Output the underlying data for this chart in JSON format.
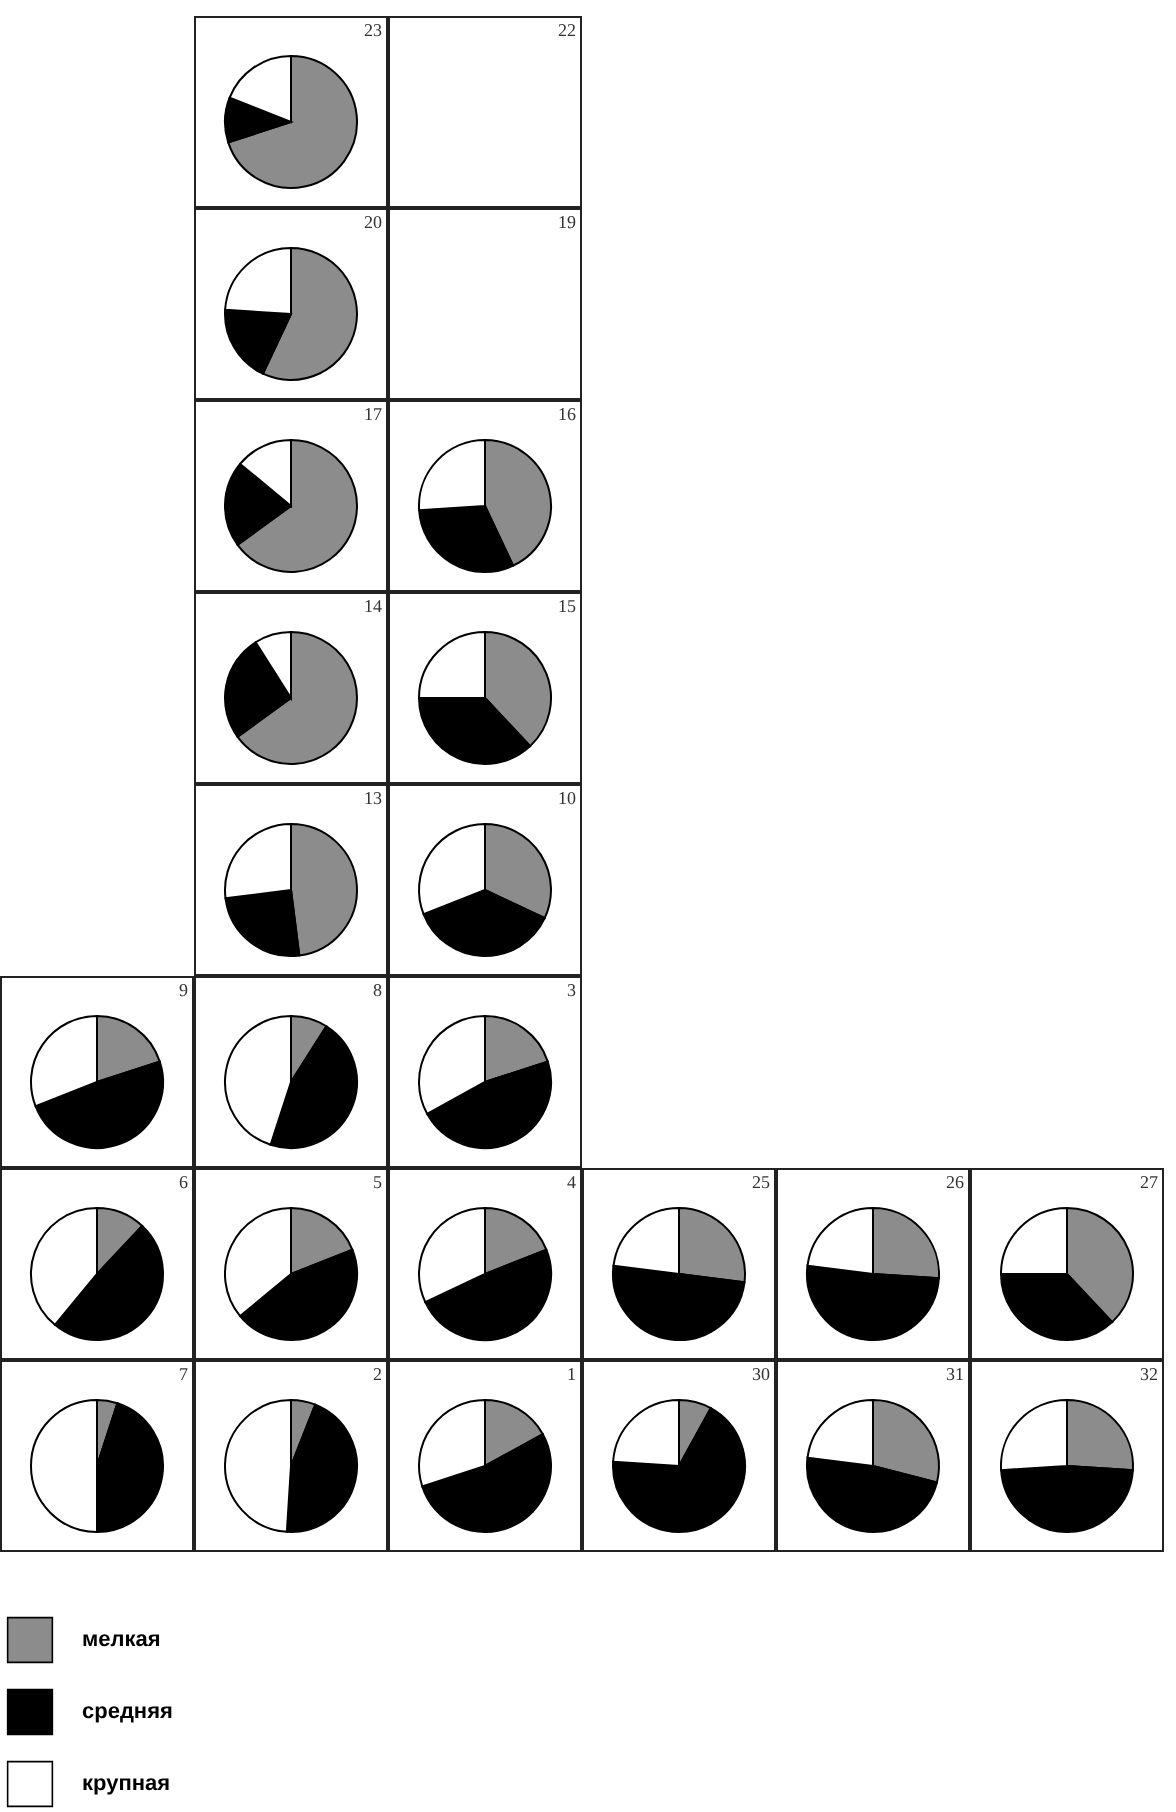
{
  "chart_data": [
    {
      "type": "pie",
      "title": "23",
      "categories": [
        null,
        null,
        null
      ],
      "values": [
        70,
        11,
        19
      ],
      "colors": [
        "#8c8c8c",
        "#000000",
        "#ffffff"
      ]
    },
    {
      "type": "other",
      "title": "22"
    },
    {
      "type": "pie",
      "title": "20",
      "categories": [
        null,
        null,
        null
      ],
      "values": [
        57,
        19,
        24
      ],
      "colors": [
        "#8c8c8c",
        "#000000",
        "#ffffff"
      ]
    },
    {
      "type": "other",
      "title": "19"
    },
    {
      "type": "pie",
      "title": "17",
      "categories": [
        null,
        null,
        null
      ],
      "values": [
        65,
        21,
        14
      ],
      "colors": [
        "#8c8c8c",
        "#000000",
        "#ffffff"
      ]
    },
    {
      "type": "pie",
      "title": "16",
      "categories": [
        null,
        null,
        null
      ],
      "values": [
        43,
        31,
        26
      ],
      "colors": [
        "#8c8c8c",
        "#000000",
        "#ffffff"
      ]
    },
    {
      "type": "pie",
      "title": "14",
      "categories": [
        null,
        null,
        null
      ],
      "values": [
        65,
        26,
        9
      ],
      "colors": [
        "#8c8c8c",
        "#000000",
        "#ffffff"
      ]
    },
    {
      "type": "pie",
      "title": "15",
      "categories": [
        null,
        null,
        null
      ],
      "values": [
        38,
        37,
        25
      ],
      "colors": [
        "#8c8c8c",
        "#000000",
        "#ffffff"
      ]
    },
    {
      "type": "pie",
      "title": "13",
      "categories": [
        null,
        null,
        null
      ],
      "values": [
        48,
        25,
        27
      ],
      "colors": [
        "#8c8c8c",
        "#000000",
        "#ffffff"
      ]
    },
    {
      "type": "pie",
      "title": "10",
      "categories": [
        null,
        null,
        null
      ],
      "values": [
        32,
        37,
        31
      ],
      "colors": [
        "#8c8c8c",
        "#000000",
        "#ffffff"
      ]
    },
    {
      "type": "pie",
      "title": "9",
      "categories": [
        null,
        null,
        null
      ],
      "values": [
        20,
        49,
        31
      ],
      "colors": [
        "#8c8c8c",
        "#000000",
        "#ffffff"
      ]
    },
    {
      "type": "pie",
      "title": "8",
      "categories": [
        null,
        null,
        null
      ],
      "values": [
        9,
        46,
        45
      ],
      "colors": [
        "#8c8c8c",
        "#000000",
        "#ffffff"
      ]
    },
    {
      "type": "pie",
      "title": "3",
      "categories": [
        null,
        null,
        null
      ],
      "values": [
        20,
        47,
        33
      ],
      "colors": [
        "#8c8c8c",
        "#000000",
        "#ffffff"
      ]
    },
    {
      "type": "pie",
      "title": "6",
      "categories": [
        null,
        null,
        null
      ],
      "values": [
        12,
        49,
        39
      ],
      "colors": [
        "#8c8c8c",
        "#000000",
        "#ffffff"
      ]
    },
    {
      "type": "pie",
      "title": "5",
      "categories": [
        null,
        null,
        null
      ],
      "values": [
        19,
        45,
        36
      ],
      "colors": [
        "#8c8c8c",
        "#000000",
        "#ffffff"
      ]
    },
    {
      "type": "pie",
      "title": "4",
      "categories": [
        null,
        null,
        null
      ],
      "values": [
        19,
        49,
        32
      ],
      "colors": [
        "#8c8c8c",
        "#000000",
        "#ffffff"
      ]
    },
    {
      "type": "pie",
      "title": "25",
      "categories": [
        null,
        null,
        null
      ],
      "values": [
        27,
        50,
        23
      ],
      "colors": [
        "#8c8c8c",
        "#000000",
        "#ffffff"
      ]
    },
    {
      "type": "pie",
      "title": "26",
      "categories": [
        null,
        null,
        null
      ],
      "values": [
        26,
        51,
        23
      ],
      "colors": [
        "#8c8c8c",
        "#000000",
        "#ffffff"
      ]
    },
    {
      "type": "pie",
      "title": "27",
      "categories": [
        null,
        null,
        null
      ],
      "values": [
        38,
        37,
        25
      ],
      "colors": [
        "#8c8c8c",
        "#000000",
        "#ffffff"
      ]
    },
    {
      "type": "pie",
      "title": "7",
      "categories": [
        "мелкая",
        "средняя",
        "крупная"
      ],
      "values": [
        5,
        45,
        50
      ],
      "colors": [
        "#8c8c8c",
        "#000000",
        "#ffffff"
      ],
      "legend": "bottom"
    },
    {
      "type": "pie",
      "title": "2",
      "categories": [
        null,
        null,
        null
      ],
      "values": [
        6,
        45,
        49
      ],
      "colors": [
        "#8c8c8c",
        "#000000",
        "#ffffff"
      ]
    },
    {
      "type": "pie",
      "title": "1",
      "categories": [
        null,
        null,
        null
      ],
      "values": [
        17,
        53,
        30
      ],
      "colors": [
        "#8c8c8c",
        "#000000",
        "#ffffff"
      ]
    },
    {
      "type": "pie",
      "title": "30",
      "categories": [
        null,
        null,
        null
      ],
      "values": [
        8,
        68,
        24
      ],
      "colors": [
        "#8c8c8c",
        "#000000",
        "#ffffff"
      ]
    },
    {
      "type": "pie",
      "title": "31",
      "categories": [
        null,
        null,
        null
      ],
      "values": [
        29,
        48,
        23
      ],
      "colors": [
        "#8c8c8c",
        "#000000",
        "#ffffff"
      ]
    },
    {
      "type": "pie",
      "title": "32",
      "categories": [
        null,
        null,
        null
      ],
      "values": [
        26,
        48,
        26
      ],
      "colors": [
        "#8c8c8c",
        "#000000",
        "#ffffff"
      ]
    }
  ]
}
